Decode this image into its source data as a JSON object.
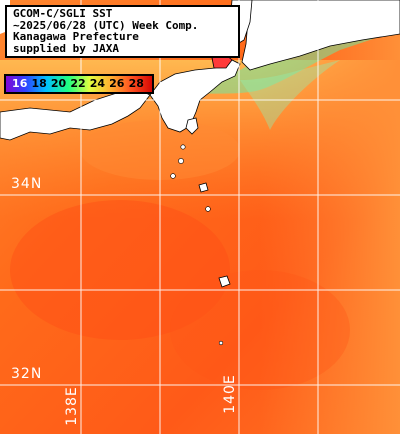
{
  "title": {
    "line1": "GCOM-C/SGLI SST",
    "line2": "~2025/06/28 (UTC) Week Comp.",
    "line3": "Kanagawa Prefecture",
    "line4": "supplied by JAXA"
  },
  "legend": {
    "values": [
      "16",
      "18",
      "20",
      "22",
      "24",
      "26",
      "28"
    ],
    "colors": [
      "#3a00c8",
      "#0090ff",
      "#00ff80",
      "#c0ff40",
      "#ffe040",
      "#ff8020",
      "#ff2020"
    ],
    "gradient": [
      "#8a00d0",
      "#3040ff",
      "#00c0ff",
      "#20ff80",
      "#e0ff40",
      "#ffb030",
      "#ff5020",
      "#d00000"
    ]
  },
  "grid": {
    "lat_labels": [
      "34N",
      "32N"
    ],
    "lon_labels": [
      "138E",
      "140E"
    ]
  },
  "colors": {
    "land": "#ffffff",
    "sea_main": "#ff6a1a",
    "sea_warm": "#ff5418",
    "sea_cool": "#ffa040",
    "coast_green": "#60f0a0",
    "grid": "#ffffff"
  }
}
